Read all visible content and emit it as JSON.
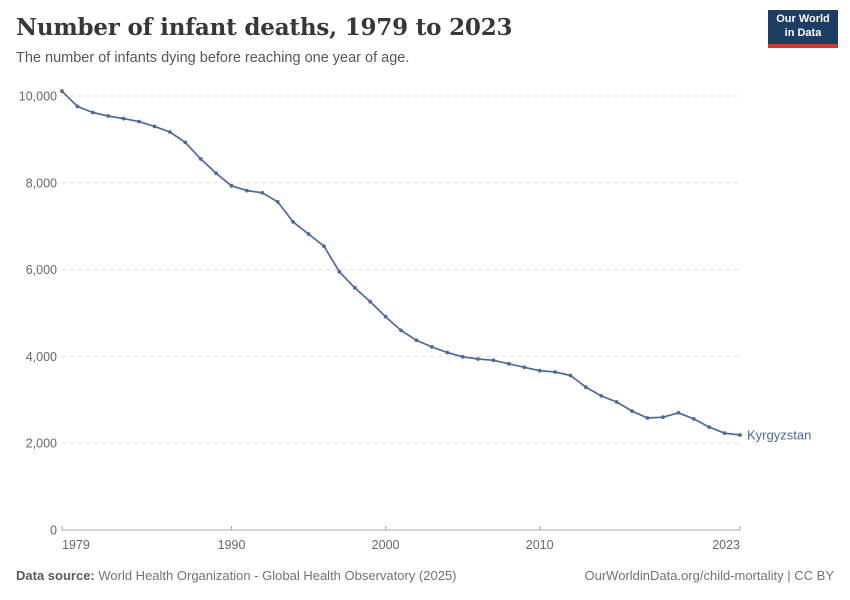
{
  "header": {
    "title": "Number of infant deaths, 1979 to 2023",
    "subtitle": "The number of infants dying before reaching one year of age.",
    "logo": {
      "line1": "Our World",
      "line2": "in Data"
    }
  },
  "chart_data": {
    "type": "line",
    "title": "Number of infant deaths, 1979 to 2023",
    "subtitle": "The number of infants dying before reaching one year of age.",
    "xlabel": "",
    "ylabel": "",
    "xlim": [
      1979,
      2023
    ],
    "ylim": [
      0,
      10000
    ],
    "x_ticks": [
      1979,
      1990,
      2000,
      2010,
      2023
    ],
    "y_ticks": [
      0,
      2000,
      4000,
      6000,
      8000,
      10000
    ],
    "grid": "horizontal-dashed",
    "legend_position": "end-of-line-label",
    "series": [
      {
        "name": "Kyrgyzstan",
        "color": "#4c6a9c",
        "x": [
          1979,
          1980,
          1981,
          1982,
          1983,
          1984,
          1985,
          1986,
          1987,
          1988,
          1989,
          1990,
          1991,
          1992,
          1993,
          1994,
          1995,
          1996,
          1997,
          1998,
          1999,
          2000,
          2001,
          2002,
          2003,
          2004,
          2005,
          2006,
          2007,
          2008,
          2009,
          2010,
          2011,
          2012,
          2013,
          2014,
          2015,
          2016,
          2017,
          2018,
          2019,
          2020,
          2021,
          2022,
          2023
        ],
        "values": [
          10110,
          9760,
          9620,
          9540,
          9480,
          9410,
          9300,
          9170,
          8930,
          8550,
          8220,
          7930,
          7820,
          7770,
          7560,
          7100,
          6820,
          6540,
          5950,
          5580,
          5260,
          4915,
          4600,
          4370,
          4220,
          4090,
          3990,
          3940,
          3910,
          3830,
          3750,
          3670,
          3640,
          3560,
          3290,
          3090,
          2950,
          2740,
          2580,
          2600,
          2700,
          2560,
          2370,
          2230,
          2190
        ]
      }
    ]
  },
  "footer": {
    "source_label": "Data source:",
    "source_text": " World Health Organization - Global Health Observatory (2025)",
    "credit": "OurWorldinData.org/child-mortality | CC BY"
  },
  "colors": {
    "line": "#4c6a9c",
    "end_label": "#4c6a9c",
    "grid": "#dddddd",
    "axis": "#a7a7a7",
    "tick_text": "#67676c",
    "logo_bg": "#1d3d63",
    "logo_bar": "#cf3a34"
  }
}
